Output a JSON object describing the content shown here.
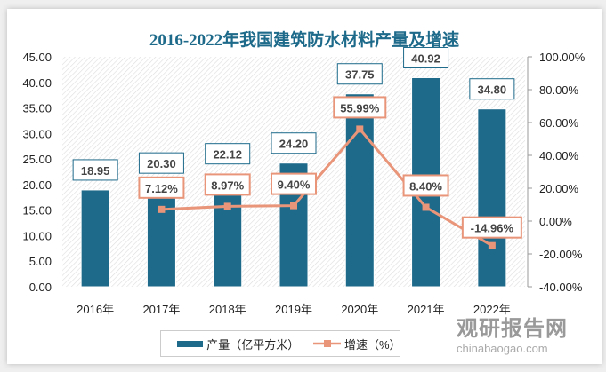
{
  "chart_data": {
    "type": "bar+line",
    "title": "2016-2022年我国建筑防水材料产量及增速",
    "categories": [
      "2016年",
      "2017年",
      "2018年",
      "2019年",
      "2020年",
      "2021年",
      "2022年"
    ],
    "series": [
      {
        "name": "产量（亿平方米）",
        "type": "bar",
        "axis": "left",
        "color": "#1d6a8a",
        "values": [
          18.95,
          20.3,
          22.12,
          24.2,
          37.75,
          40.92,
          34.8
        ],
        "labels": [
          "18.95",
          "20.30",
          "22.12",
          "24.20",
          "37.75",
          "40.92",
          "34.80"
        ]
      },
      {
        "name": "增速（%）",
        "type": "line",
        "axis": "right",
        "color": "#e8957a",
        "values": [
          null,
          7.12,
          8.97,
          9.4,
          55.99,
          8.4,
          -14.96
        ],
        "labels": [
          "",
          "7.12%",
          "8.97%",
          "9.40%",
          "55.99%",
          "8.40%",
          "-14.96%"
        ]
      }
    ],
    "left_axis": {
      "ylim": [
        0,
        45
      ],
      "ticks": [
        "0.00",
        "5.00",
        "10.00",
        "15.00",
        "20.00",
        "25.00",
        "30.00",
        "35.00",
        "40.00",
        "45.00"
      ]
    },
    "right_axis": {
      "ylim": [
        -40,
        100
      ],
      "ticks": [
        "-40.00%",
        "-20.00%",
        "0.00%",
        "20.00%",
        "40.00%",
        "60.00%",
        "80.00%",
        "100.00%"
      ]
    },
    "legend": "bottom",
    "grid": false
  },
  "watermark": {
    "cn": "观研报告网",
    "en": "chinabaogao.com"
  }
}
